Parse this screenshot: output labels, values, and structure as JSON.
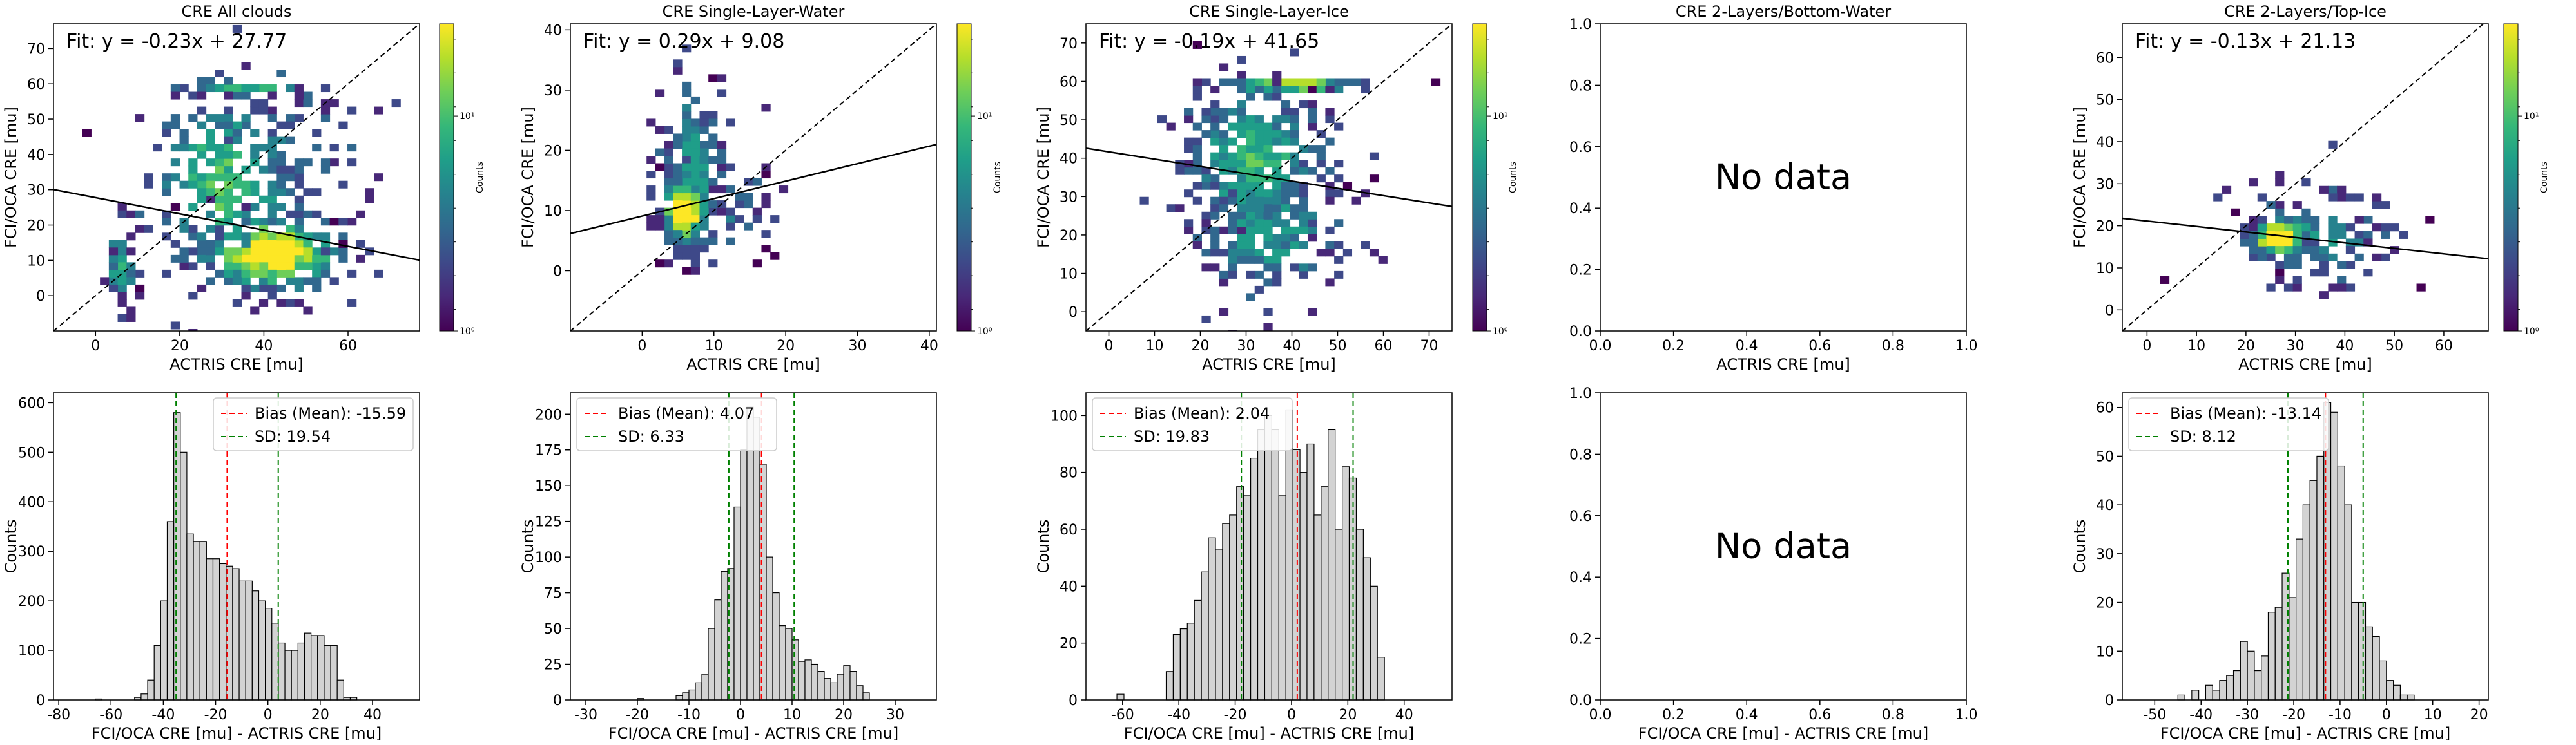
{
  "colors": {
    "viridis": [
      "#440154",
      "#482878",
      "#3e4989",
      "#31688e",
      "#26828e",
      "#1f9e89",
      "#35b779",
      "#6ece58",
      "#b5de2b",
      "#fde725"
    ],
    "hist_fill": "#d3d3d3",
    "bias_line": "#ff0000",
    "sd_line": "#008000"
  },
  "top_panels": [
    {
      "title": "CRE All clouds",
      "xlabel": "ACTRIS CRE [mu]",
      "ylabel": "FCI/OCA CRE [mu]",
      "xticks": [
        0,
        20,
        40,
        60
      ],
      "yticks": [
        0,
        10,
        20,
        30,
        40,
        50,
        60,
        70
      ],
      "xlim": [
        -10,
        77
      ],
      "ylim": [
        -10,
        77
      ],
      "fit_text": "Fit: y = -0.23x + 27.77",
      "fit": {
        "slope": -0.23,
        "intercept": 27.77
      },
      "one_to_one_line": true,
      "colorbar": {
        "label": "Counts",
        "ticks": [
          "10⁰",
          "10¹"
        ]
      },
      "hex_clusters": [
        {
          "cx": 42,
          "cy": 12,
          "sx": 9,
          "sy": 6,
          "n": 260,
          "peak": 1.0
        },
        {
          "cx": 30,
          "cy": 32,
          "sx": 11,
          "sy": 14,
          "n": 260,
          "peak": 0.55
        },
        {
          "cx": 6,
          "cy": 8,
          "sx": 1.8,
          "sy": 5,
          "n": 50,
          "peak": 0.45
        },
        {
          "cx": 35,
          "cy": 59,
          "sx": 9,
          "sy": 0.5,
          "n": 50,
          "peak": 0.55
        },
        {
          "cx": 45,
          "cy": 40,
          "sx": 12,
          "sy": 14,
          "n": 70,
          "peak": 0.25
        }
      ],
      "has_data": true
    },
    {
      "title": "CRE Single-Layer-Water",
      "xlabel": "ACTRIS CRE [mu]",
      "ylabel": "FCI/OCA CRE [mu]",
      "xticks": [
        0,
        10,
        20,
        30,
        40
      ],
      "yticks": [
        0,
        10,
        20,
        30,
        40
      ],
      "xlim": [
        -10,
        41
      ],
      "ylim": [
        -10,
        41
      ],
      "fit_text": "Fit: y = 0.29x + 9.08",
      "fit": {
        "slope": 0.29,
        "intercept": 9.08
      },
      "one_to_one_line": true,
      "colorbar": {
        "label": "Counts",
        "ticks": [
          "10⁰",
          "10¹"
        ]
      },
      "hex_clusters": [
        {
          "cx": 6,
          "cy": 10,
          "sx": 1.5,
          "sy": 3,
          "n": 220,
          "peak": 1.0
        },
        {
          "cx": 7,
          "cy": 18,
          "sx": 2.2,
          "sy": 7,
          "n": 160,
          "peak": 0.4
        },
        {
          "cx": 12,
          "cy": 10,
          "sx": 4,
          "sy": 5,
          "n": 50,
          "peak": 0.2
        }
      ],
      "has_data": true
    },
    {
      "title": "CRE Single-Layer-Ice",
      "xlabel": "ACTRIS CRE [mu]",
      "ylabel": "FCI/OCA CRE [mu]",
      "xticks": [
        0,
        10,
        20,
        30,
        40,
        50,
        60,
        70
      ],
      "yticks": [
        0,
        10,
        20,
        30,
        40,
        50,
        60,
        70
      ],
      "xlim": [
        -5,
        75
      ],
      "ylim": [
        -5,
        75
      ],
      "fit_text": "Fit: y = -0.19x + 41.65",
      "fit": {
        "slope": -0.19,
        "intercept": 41.65
      },
      "one_to_one_line": true,
      "colorbar": {
        "label": "Counts",
        "ticks": [
          "10⁰",
          "10¹"
        ]
      },
      "hex_clusters": [
        {
          "cx": 32,
          "cy": 40,
          "sx": 8,
          "sy": 10,
          "n": 300,
          "peak": 0.55
        },
        {
          "cx": 35,
          "cy": 20,
          "sx": 9,
          "sy": 9,
          "n": 180,
          "peak": 0.4
        },
        {
          "cx": 40,
          "cy": 59,
          "sx": 8,
          "sy": 0.5,
          "n": 60,
          "peak": 0.7
        }
      ],
      "has_data": true
    },
    {
      "title": "CRE 2-Layers/Bottom-Water",
      "xlabel": "ACTRIS CRE [mu]",
      "ylabel": "",
      "xticks": [
        0.0,
        0.2,
        0.4,
        0.6,
        0.8,
        1.0
      ],
      "yticks": [
        0.0,
        0.2,
        0.4,
        0.6,
        0.8,
        1.0
      ],
      "xlim": [
        0,
        1
      ],
      "ylim": [
        0,
        1
      ],
      "no_data_text": "No data",
      "has_data": false
    },
    {
      "title": "CRE 2-Layers/Top-Ice",
      "xlabel": "ACTRIS CRE [mu]",
      "ylabel": "FCI/OCA CRE [mu]",
      "xticks": [
        0,
        10,
        20,
        30,
        40,
        50,
        60
      ],
      "yticks": [
        0,
        10,
        20,
        30,
        40,
        50,
        60
      ],
      "xlim": [
        -5,
        69
      ],
      "ylim": [
        -5,
        68
      ],
      "fit_text": "Fit: y = -0.13x + 21.13",
      "fit": {
        "slope": -0.13,
        "intercept": 21.13
      },
      "one_to_one_line": true,
      "colorbar": {
        "label": "Counts",
        "ticks": [
          "10⁰",
          "10¹"
        ]
      },
      "hex_clusters": [
        {
          "cx": 27,
          "cy": 17,
          "sx": 3,
          "sy": 2.5,
          "n": 160,
          "peak": 1.0
        },
        {
          "cx": 34,
          "cy": 17,
          "sx": 9,
          "sy": 6,
          "n": 140,
          "peak": 0.3
        }
      ],
      "has_data": true
    }
  ],
  "chart_data": [
    {
      "type": "bar",
      "title": "",
      "xlabel": "FCI/OCA CRE [mu] - ACTRIS CRE [mu]",
      "ylabel": "Counts",
      "xlim": [
        -82,
        58
      ],
      "ylim": [
        0,
        620
      ],
      "xticks": [
        -80,
        -60,
        -40,
        -20,
        0,
        20,
        40
      ],
      "yticks": [
        0,
        100,
        200,
        300,
        400,
        500,
        600
      ],
      "bin_start": -66,
      "bin_width": 2.5,
      "values": [
        2,
        0,
        0,
        0,
        0,
        0,
        5,
        12,
        40,
        110,
        200,
        360,
        580,
        500,
        335,
        320,
        320,
        285,
        285,
        275,
        270,
        265,
        240,
        240,
        220,
        200,
        185,
        155,
        115,
        100,
        100,
        115,
        135,
        130,
        130,
        110,
        110,
        40,
        5,
        5
      ],
      "bias_label": "Bias (Mean): -15.59",
      "bias": -15.59,
      "sd_label": "SD: 19.54",
      "sd": 19.54,
      "legend_placement": "upper right"
    },
    {
      "type": "bar",
      "title": "",
      "xlabel": "FCI/OCA CRE [mu] - ACTRIS CRE [mu]",
      "ylabel": "Counts",
      "xlim": [
        -33,
        38
      ],
      "ylim": [
        0,
        215
      ],
      "xticks": [
        -30,
        -20,
        -10,
        0,
        10,
        20,
        30
      ],
      "yticks": [
        0,
        25,
        50,
        75,
        100,
        125,
        150,
        175,
        200
      ],
      "bin_start": -20,
      "bin_width": 1.25,
      "values": [
        1,
        0,
        0,
        0,
        0,
        0,
        3,
        5,
        7,
        12,
        18,
        50,
        70,
        90,
        92,
        135,
        175,
        205,
        198,
        165,
        100,
        75,
        52,
        50,
        42,
        27,
        28,
        25,
        20,
        15,
        12,
        18,
        24,
        20,
        10,
        5
      ],
      "bias_label": "Bias (Mean): 4.07",
      "bias": 4.07,
      "sd_label": "SD: 6.33",
      "sd": 6.33,
      "legend_placement": "upper left"
    },
    {
      "type": "bar",
      "title": "",
      "xlabel": "FCI/OCA CRE [mu] - ACTRIS CRE [mu]",
      "ylabel": "Counts",
      "xlim": [
        -73,
        57
      ],
      "ylim": [
        0,
        108
      ],
      "xticks": [
        -60,
        -40,
        -20,
        0,
        20,
        40
      ],
      "yticks": [
        0,
        20,
        40,
        60,
        80,
        100
      ],
      "bin_start": -62,
      "bin_width": 2.5,
      "values": [
        2,
        0,
        0,
        0,
        0,
        0,
        0,
        10,
        23,
        25,
        27,
        35,
        45,
        57,
        53,
        62,
        65,
        75,
        72,
        85,
        95,
        100,
        95,
        72,
        102,
        88,
        80,
        90,
        65,
        75,
        95,
        60,
        82,
        78,
        60,
        50,
        40,
        15
      ],
      "bias_label": "Bias (Mean): 2.04",
      "bias": 2.04,
      "sd_label": "SD: 19.83",
      "sd": 19.83,
      "legend_placement": "upper left"
    },
    {
      "type": "bar",
      "title": "",
      "xlabel": "FCI/OCA CRE [mu] - ACTRIS CRE [mu]",
      "ylabel": "",
      "xlim": [
        0,
        1
      ],
      "ylim": [
        0,
        1
      ],
      "xticks": [
        0.0,
        0.2,
        0.4,
        0.6,
        0.8,
        1.0
      ],
      "yticks": [
        0.0,
        0.2,
        0.4,
        0.6,
        0.8,
        1.0
      ],
      "values": [],
      "no_data_text": "No data"
    },
    {
      "type": "bar",
      "title": "",
      "xlabel": "FCI/OCA CRE [mu] - ACTRIS CRE [mu]",
      "ylabel": "Counts",
      "xlim": [
        -57,
        22
      ],
      "ylim": [
        0,
        63
      ],
      "xticks": [
        -50,
        -40,
        -30,
        -20,
        -10,
        0,
        10,
        20
      ],
      "yticks": [
        0,
        10,
        20,
        30,
        40,
        50,
        60
      ],
      "bin_start": -45,
      "bin_width": 1.5,
      "values": [
        1,
        0,
        2,
        0,
        3,
        2,
        4,
        5,
        6,
        12,
        10,
        6,
        9,
        18,
        19,
        26,
        21,
        33,
        40,
        45,
        50,
        61,
        59,
        48,
        40,
        20,
        20,
        15,
        13,
        8,
        4,
        3,
        1,
        1
      ],
      "bias_label": "Bias (Mean): -13.14",
      "bias": -13.14,
      "sd_label": "SD: 8.12",
      "sd": 8.12,
      "legend_placement": "upper left"
    }
  ]
}
